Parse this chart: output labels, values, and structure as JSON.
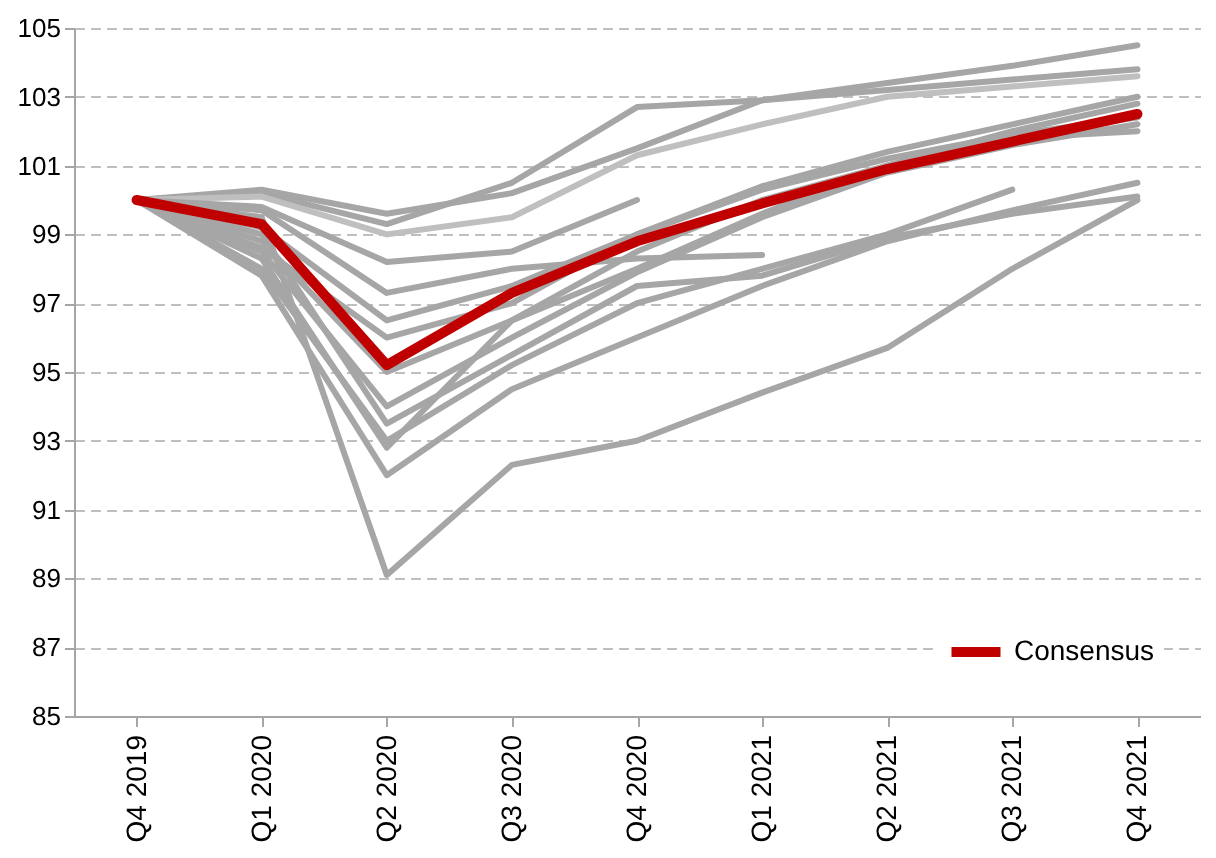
{
  "chart_data": {
    "type": "line",
    "categories": [
      "Q4 2019",
      "Q1 2020",
      "Q2 2020",
      "Q3 2020",
      "Q4 2020",
      "Q1 2021",
      "Q2 2021",
      "Q3 2021",
      "Q4 2021"
    ],
    "ylim": [
      85,
      105
    ],
    "yticks": [
      85,
      87,
      89,
      91,
      93,
      95,
      97,
      99,
      101,
      103,
      105
    ],
    "grid": "y",
    "legend": "bottom right",
    "line_style": "solid",
    "marker": "none",
    "series": [
      {
        "color": "#a6a6a6",
        "values": [
          100,
          99.5,
          89.1,
          92.3,
          93.0,
          94.4,
          95.7,
          98.0,
          100.0
        ]
      },
      {
        "color": "#a6a6a6",
        "values": [
          100,
          100.3,
          99.6,
          100.2,
          101.5,
          102.9,
          103.4,
          103.9,
          104.5
        ]
      },
      {
        "color": "#a6a6a6",
        "values": [
          100,
          100.2,
          99.3,
          100.5,
          102.7,
          102.9,
          103.2,
          103.5,
          103.8
        ]
      },
      {
        "color": "#bfbfbf",
        "values": [
          100,
          100.1,
          99.0,
          99.5,
          101.3,
          102.2,
          103.0,
          103.3,
          103.6
        ]
      },
      {
        "color": "#a6a6a6",
        "values": [
          100,
          99.8,
          98.2,
          98.5,
          100.0,
          null,
          null,
          null,
          null
        ]
      },
      {
        "color": "#a6a6a6",
        "values": [
          100,
          99.7,
          97.3,
          98.0,
          98.3,
          98.4,
          null,
          null,
          null
        ]
      },
      {
        "color": "#a6a6a6",
        "values": [
          100,
          99.2,
          96.5,
          97.5,
          99.0,
          100.4,
          101.4,
          102.2,
          103.0
        ]
      },
      {
        "color": "#a6a6a6",
        "values": [
          100,
          98.8,
          95.0,
          96.5,
          98.0,
          99.6,
          101.0,
          102.0,
          102.8
        ]
      },
      {
        "color": "#a6a6a6",
        "values": [
          100,
          98.5,
          94.0,
          96.0,
          97.9,
          99.5,
          100.8,
          101.6,
          102.2
        ]
      },
      {
        "color": "#a6a6a6",
        "values": [
          100,
          98.0,
          93.0,
          95.2,
          97.0,
          98.0,
          99.0,
          100.3,
          null
        ]
      },
      {
        "color": "#a6a6a6",
        "values": [
          100,
          97.8,
          92.0,
          94.5,
          96.0,
          97.5,
          98.8,
          99.7,
          100.5
        ]
      },
      {
        "color": "#a6a6a6",
        "values": [
          100,
          99.0,
          93.5,
          95.5,
          97.5,
          97.8,
          98.9,
          99.6,
          100.1
        ]
      },
      {
        "color": "#a6a6a6",
        "values": [
          100,
          98.3,
          92.8,
          96.5,
          98.5,
          100.0,
          101.0,
          101.8,
          102.0
        ]
      },
      {
        "color": "#a6a6a6",
        "values": [
          100,
          98.6,
          96.0,
          97.0,
          99.0,
          100.3,
          101.2,
          101.9,
          102.4
        ]
      },
      {
        "name": "Consensus",
        "color": "#c00000",
        "values": [
          100,
          99.3,
          95.2,
          97.3,
          98.8,
          99.9,
          100.9,
          101.7,
          102.5
        ]
      }
    ]
  }
}
